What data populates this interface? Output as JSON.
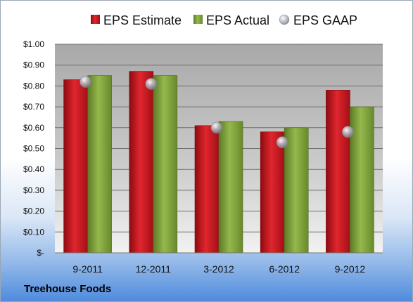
{
  "company": "Treehouse Foods",
  "colors": {
    "estimate": "#c8141c",
    "actual": "#7fa03a",
    "gaap": "#9aa0aa",
    "plot_top": "#a9a9a9",
    "plot_bottom": "#f0f0f0"
  },
  "chart_data": {
    "type": "bar",
    "title": "",
    "xlabel": "",
    "ylabel": "",
    "categories": [
      "9-2011",
      "12-2011",
      "3-2012",
      "6-2012",
      "9-2012"
    ],
    "series": [
      {
        "name": "EPS Estimate",
        "kind": "bar",
        "values": [
          0.83,
          0.87,
          0.61,
          0.58,
          0.78
        ]
      },
      {
        "name": "EPS Actual",
        "kind": "bar",
        "values": [
          0.85,
          0.85,
          0.63,
          0.6,
          0.7
        ]
      },
      {
        "name": "EPS GAAP",
        "kind": "marker",
        "values": [
          0.82,
          0.81,
          0.6,
          0.53,
          0.58
        ]
      }
    ],
    "ylim": [
      0,
      1.0
    ],
    "yticks": [
      "$-",
      "$0.10",
      "$0.20",
      "$0.30",
      "$0.40",
      "$0.50",
      "$0.60",
      "$0.70",
      "$0.80",
      "$0.90",
      "$1.00"
    ],
    "grid": true,
    "legend_position": "top"
  }
}
